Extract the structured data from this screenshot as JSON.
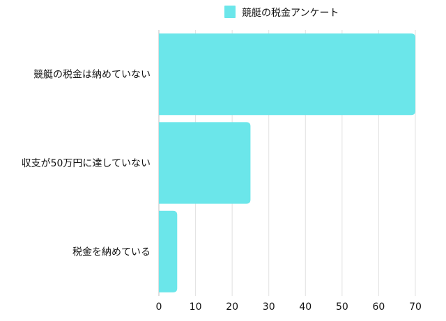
{
  "chart_data": {
    "type": "bar",
    "orientation": "horizontal",
    "categories": [
      "競艇の税金は納めていない",
      "収支が50万円に達していない",
      "税金を納めている"
    ],
    "series": [
      {
        "name": "競艇の税金アンケート",
        "values": [
          70,
          25,
          5
        ],
        "color": "#6be6ea"
      }
    ],
    "xlim": [
      0,
      70
    ],
    "xticks": [
      0,
      10,
      20,
      30,
      40,
      50,
      60,
      70
    ],
    "grid": "vertical",
    "legend_position": "top"
  }
}
